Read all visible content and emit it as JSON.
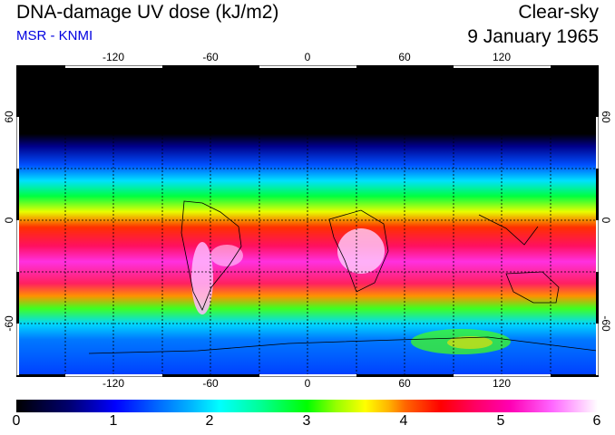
{
  "header": {
    "title": "DNA-damage UV dose (kJ/m2)",
    "source": "MSR - KNMI",
    "condition": "Clear-sky",
    "date": "9 January 1965"
  },
  "map": {
    "lon_ticks": [
      "-120",
      "-60",
      "0",
      "60",
      "120"
    ],
    "lat_ticks_left": [
      "60",
      "0",
      "-60"
    ],
    "lat_ticks_right": [
      "60",
      "0",
      "-60"
    ]
  },
  "colorbar": {
    "ticks": [
      "0",
      "1",
      "2",
      "3",
      "4",
      "5",
      "6"
    ],
    "min": 0,
    "max": 6
  }
}
